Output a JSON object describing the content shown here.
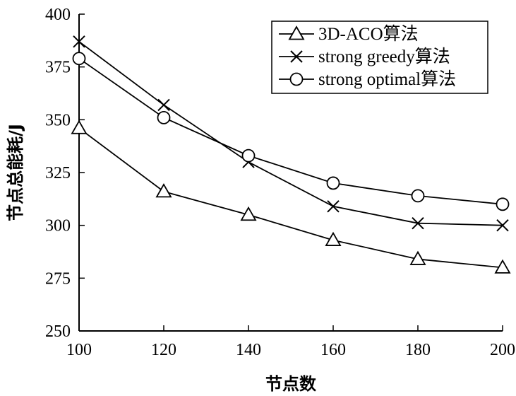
{
  "chart_data": {
    "type": "line",
    "title": "",
    "xlabel": "节点数",
    "ylabel": "节点总能耗/J",
    "x": [
      100,
      120,
      140,
      160,
      180,
      200
    ],
    "xticks": [
      "100",
      "120",
      "140",
      "160",
      "180",
      "200"
    ],
    "yticks": [
      "250",
      "275",
      "300",
      "325",
      "350",
      "375",
      "400"
    ],
    "xlim": [
      100,
      200
    ],
    "ylim": [
      250,
      400
    ],
    "grid": false,
    "legend_position": "top-right",
    "series": [
      {
        "name": "3D-ACO算法",
        "marker": "triangle",
        "values": [
          346,
          316,
          305,
          293,
          284,
          280
        ]
      },
      {
        "name": "strong greedy算法",
        "marker": "x",
        "values": [
          387,
          357,
          330,
          309,
          301,
          300
        ]
      },
      {
        "name": "strong optimal算法",
        "marker": "circle",
        "values": [
          379,
          351,
          333,
          320,
          314,
          310
        ]
      }
    ]
  }
}
